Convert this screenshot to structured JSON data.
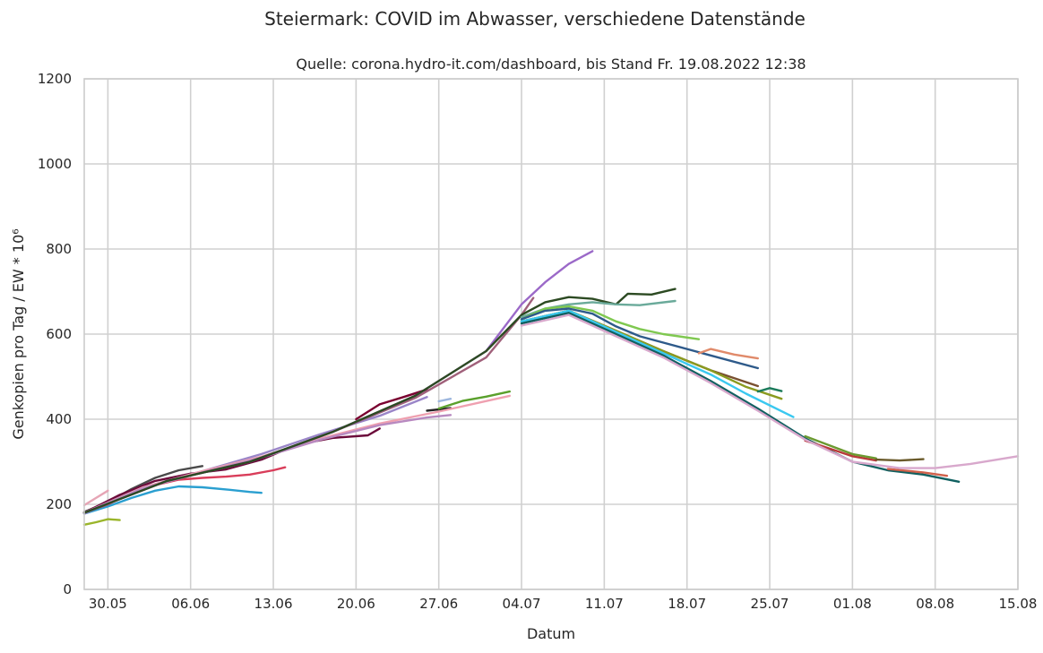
{
  "chart_data": {
    "type": "line",
    "title": "Steiermark: COVID im Abwasser, verschiedene Datenstände",
    "subtitle": "Quelle: corona.hydro-it.com/dashboard, bis Stand Fr. 19.08.2022 12:38",
    "xlabel": "Datum",
    "ylabel": "Genkopien pro Tag / EW * 10⁶",
    "x_unit": "date (2022)",
    "xlim": [
      "2022-05-28",
      "2022-08-15"
    ],
    "ylim": [
      0,
      1200
    ],
    "x_ticks": [
      {
        "date": "2022-05-30",
        "label": "30.05"
      },
      {
        "date": "2022-06-06",
        "label": "06.06"
      },
      {
        "date": "2022-06-13",
        "label": "13.06"
      },
      {
        "date": "2022-06-20",
        "label": "20.06"
      },
      {
        "date": "2022-06-27",
        "label": "27.06"
      },
      {
        "date": "2022-07-04",
        "label": "04.07"
      },
      {
        "date": "2022-07-11",
        "label": "11.07"
      },
      {
        "date": "2022-07-18",
        "label": "18.07"
      },
      {
        "date": "2022-07-25",
        "label": "25.07"
      },
      {
        "date": "2022-08-01",
        "label": "01.08"
      },
      {
        "date": "2022-08-08",
        "label": "08.08"
      },
      {
        "date": "2022-08-15",
        "label": "15.08"
      }
    ],
    "y_ticks": [
      0,
      200,
      400,
      600,
      800,
      1000,
      1200
    ],
    "grid": true,
    "legend": "none",
    "series": [
      {
        "color": "#e6a5b5",
        "x": [
          "2022-05-28",
          "2022-05-29",
          "2022-05-30"
        ],
        "y": [
          198,
          215,
          232
        ]
      },
      {
        "color": "#9ab52a",
        "x": [
          "2022-05-28",
          "2022-05-29",
          "2022-05-30",
          "2022-05-31"
        ],
        "y": [
          152,
          158,
          165,
          163
        ]
      },
      {
        "color": "#2a9fd0",
        "x": [
          "2022-05-28",
          "2022-05-30",
          "2022-06-01",
          "2022-06-03",
          "2022-06-05",
          "2022-06-07",
          "2022-06-09",
          "2022-06-11",
          "2022-06-12"
        ],
        "y": [
          178,
          195,
          215,
          232,
          242,
          240,
          235,
          229,
          227
        ]
      },
      {
        "color": "#4a4a4a",
        "x": [
          "2022-05-28",
          "2022-05-30",
          "2022-06-01",
          "2022-06-03",
          "2022-06-05",
          "2022-06-07"
        ],
        "y": [
          182,
          205,
          236,
          262,
          280,
          290
        ]
      },
      {
        "color": "#d93d5a",
        "x": [
          "2022-05-28",
          "2022-05-30",
          "2022-06-01",
          "2022-06-03",
          "2022-06-05",
          "2022-06-07",
          "2022-06-09",
          "2022-06-11",
          "2022-06-13",
          "2022-06-14"
        ],
        "y": [
          180,
          200,
          225,
          245,
          258,
          262,
          265,
          270,
          280,
          287
        ]
      },
      {
        "color": "#6b0a3a",
        "x": [
          "2022-05-28",
          "2022-05-31",
          "2022-06-03",
          "2022-06-06",
          "2022-06-09",
          "2022-06-12",
          "2022-06-15",
          "2022-06-18",
          "2022-06-21",
          "2022-06-22"
        ],
        "y": [
          180,
          222,
          255,
          272,
          282,
          305,
          340,
          356,
          362,
          378
        ]
      },
      {
        "color": "#7a0030",
        "x": [
          "2022-06-20",
          "2022-06-22",
          "2022-06-24",
          "2022-06-26"
        ],
        "y": [
          400,
          435,
          452,
          470
        ]
      },
      {
        "color": "#9a85c8",
        "x": [
          "2022-05-28",
          "2022-06-02",
          "2022-06-07",
          "2022-06-12",
          "2022-06-17",
          "2022-06-22",
          "2022-06-26"
        ],
        "y": [
          178,
          240,
          278,
          318,
          365,
          408,
          452
        ]
      },
      {
        "color": "#222222",
        "x": [
          "2022-06-26",
          "2022-06-27",
          "2022-06-28"
        ],
        "y": [
          420,
          423,
          426
        ]
      },
      {
        "color": "#9cb6de",
        "x": [
          "2022-06-27",
          "2022-06-28"
        ],
        "y": [
          442,
          448
        ]
      },
      {
        "color": "#5aa02c",
        "x": [
          "2022-06-27",
          "2022-06-29",
          "2022-07-01",
          "2022-07-03"
        ],
        "y": [
          425,
          443,
          453,
          465
        ]
      },
      {
        "color": "#efa0b0",
        "x": [
          "2022-05-28",
          "2022-06-02",
          "2022-06-07",
          "2022-06-12",
          "2022-06-17",
          "2022-06-22",
          "2022-06-27",
          "2022-07-03"
        ],
        "y": [
          180,
          240,
          278,
          312,
          355,
          390,
          418,
          455
        ]
      },
      {
        "color": "#b889c0",
        "x": [
          "2022-05-28",
          "2022-06-02",
          "2022-06-07",
          "2022-06-12",
          "2022-06-17",
          "2022-06-22",
          "2022-06-26",
          "2022-06-28"
        ],
        "y": [
          180,
          238,
          275,
          310,
          352,
          386,
          404,
          410
        ]
      },
      {
        "color": "#a0607a",
        "x": [
          "2022-05-28",
          "2022-06-04",
          "2022-06-11",
          "2022-06-18",
          "2022-06-25",
          "2022-07-01",
          "2022-07-04",
          "2022-07-05"
        ],
        "y": [
          180,
          255,
          300,
          370,
          450,
          545,
          645,
          685
        ]
      },
      {
        "color": "#9b69c8",
        "x": [
          "2022-05-28",
          "2022-06-04",
          "2022-06-11",
          "2022-06-18",
          "2022-06-25",
          "2022-07-01",
          "2022-07-04",
          "2022-07-06",
          "2022-07-08",
          "2022-07-10"
        ],
        "y": [
          180,
          255,
          300,
          370,
          455,
          560,
          670,
          722,
          765,
          795
        ]
      },
      {
        "color": "#2c4a22",
        "x": [
          "2022-05-28",
          "2022-06-04",
          "2022-06-11",
          "2022-06-18",
          "2022-06-25",
          "2022-07-01",
          "2022-07-04",
          "2022-07-06",
          "2022-07-08",
          "2022-07-10",
          "2022-07-12",
          "2022-07-13",
          "2022-07-15",
          "2022-07-17"
        ],
        "y": [
          180,
          255,
          300,
          370,
          455,
          560,
          645,
          675,
          687,
          683,
          670,
          695,
          693,
          706
        ]
      },
      {
        "color": "#6aaa9a",
        "x": [
          "2022-07-04",
          "2022-07-06",
          "2022-07-08",
          "2022-07-10",
          "2022-07-12",
          "2022-07-14",
          "2022-07-17"
        ],
        "y": [
          640,
          660,
          670,
          675,
          670,
          668,
          678
        ]
      },
      {
        "color": "#7fc850",
        "x": [
          "2022-07-04",
          "2022-07-06",
          "2022-07-08",
          "2022-07-10",
          "2022-07-12",
          "2022-07-14",
          "2022-07-16",
          "2022-07-19"
        ],
        "y": [
          635,
          660,
          665,
          655,
          630,
          612,
          600,
          588
        ]
      },
      {
        "color": "#2e5a8a",
        "x": [
          "2022-07-04",
          "2022-07-06",
          "2022-07-08",
          "2022-07-10",
          "2022-07-12",
          "2022-07-14",
          "2022-07-16",
          "2022-07-18",
          "2022-07-20",
          "2022-07-24"
        ],
        "y": [
          635,
          655,
          660,
          648,
          618,
          595,
          580,
          565,
          550,
          520
        ]
      },
      {
        "color": "#e08a6a",
        "x": [
          "2022-07-19",
          "2022-07-20",
          "2022-07-22",
          "2022-07-24"
        ],
        "y": [
          555,
          565,
          552,
          543
        ]
      },
      {
        "color": "#7a5030",
        "x": [
          "2022-07-04",
          "2022-07-08",
          "2022-07-12",
          "2022-07-16",
          "2022-07-20",
          "2022-07-24"
        ],
        "y": [
          630,
          655,
          608,
          560,
          515,
          478
        ]
      },
      {
        "color": "#8a9a20",
        "x": [
          "2022-07-04",
          "2022-07-08",
          "2022-07-12",
          "2022-07-16",
          "2022-07-20",
          "2022-07-23",
          "2022-07-26"
        ],
        "y": [
          630,
          655,
          608,
          560,
          515,
          476,
          448
        ]
      },
      {
        "color": "#1a7a5a",
        "x": [
          "2022-07-24",
          "2022-07-25",
          "2022-07-26"
        ],
        "y": [
          465,
          473,
          466
        ]
      },
      {
        "color": "#3ac8f0",
        "x": [
          "2022-07-04",
          "2022-07-08",
          "2022-07-12",
          "2022-07-16",
          "2022-07-20",
          "2022-07-23",
          "2022-07-27"
        ],
        "y": [
          630,
          655,
          605,
          555,
          505,
          460,
          405
        ]
      },
      {
        "color": "#106060",
        "x": [
          "2022-07-04",
          "2022-07-08",
          "2022-07-12",
          "2022-07-16",
          "2022-07-20",
          "2022-07-24",
          "2022-07-28",
          "2022-08-01",
          "2022-08-04",
          "2022-08-07",
          "2022-08-10"
        ],
        "y": [
          625,
          650,
          600,
          550,
          490,
          425,
          355,
          300,
          280,
          270,
          253
        ]
      },
      {
        "color": "#b83a3a",
        "x": [
          "2022-07-28",
          "2022-08-01",
          "2022-08-03"
        ],
        "y": [
          350,
          313,
          303
        ]
      },
      {
        "color": "#6b9a30",
        "x": [
          "2022-07-28",
          "2022-08-01",
          "2022-08-03"
        ],
        "y": [
          360,
          318,
          308
        ]
      },
      {
        "color": "#6a5a2a",
        "x": [
          "2022-08-03",
          "2022-08-05",
          "2022-08-07"
        ],
        "y": [
          305,
          303,
          306
        ]
      },
      {
        "color": "#d0604a",
        "x": [
          "2022-08-04",
          "2022-08-07",
          "2022-08-09"
        ],
        "y": [
          283,
          275,
          267
        ]
      },
      {
        "color": "#d8a8cc",
        "x": [
          "2022-07-04",
          "2022-07-08",
          "2022-07-12",
          "2022-07-16",
          "2022-07-20",
          "2022-07-24",
          "2022-07-28",
          "2022-08-01",
          "2022-08-05",
          "2022-08-08",
          "2022-08-11",
          "2022-08-15"
        ],
        "y": [
          620,
          645,
          595,
          545,
          485,
          420,
          352,
          300,
          285,
          285,
          295,
          313
        ]
      }
    ]
  }
}
